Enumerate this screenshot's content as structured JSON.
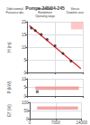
{
  "chart_data": [
    {
      "type": "line",
      "title": "Pompe 245/04-245",
      "annotations": [
        "Débit nominal",
        "Hmt nominal",
        "Vitesse",
        "Puissance abs.",
        "Rendement",
        "Diamètre roue",
        "Operating range"
      ],
      "ylabel": "H (m)",
      "xlim": [
        0,
        14000
      ],
      "ylim": [
        0,
        20
      ],
      "xticks": [
        0,
        7000,
        14000
      ],
      "yticks": [
        0,
        5,
        10,
        15,
        20
      ],
      "grid": true,
      "tick_labels": "y",
      "series": [
        {
          "type": "line",
          "x": [
            500,
            13500
          ],
          "values": [
            18.5,
            1.5
          ],
          "color": "#dd2222"
        },
        {
          "type": "scatter",
          "x": [
            1000,
            2000,
            3500,
            5000,
            7000,
            9000,
            11000
          ],
          "values": [
            17.5,
            16.5,
            15.0,
            13.0,
            10.5,
            7.5,
            4.5
          ],
          "color": "#222222",
          "marker": "circle"
        }
      ],
      "regions": [
        {
          "x": [
            11000,
            14000
          ],
          "y": [
            17.0,
            20.0
          ],
          "color": "#ffb0b0"
        }
      ]
    },
    {
      "type": "scatter",
      "ylabel": "P (kW)",
      "xlim": [
        0,
        14000
      ],
      "ylim": [
        0,
        10
      ],
      "xticks": [
        0,
        7000,
        14000
      ],
      "yticks": [
        0,
        5,
        10
      ],
      "grid": true,
      "tick_labels": "y",
      "series": [
        {
          "type": "scatter",
          "x": [
            2500
          ],
          "values": [
            2.5
          ],
          "color": "#555555",
          "marker": "square"
        }
      ],
      "regions": [
        {
          "x": [
            2000,
            13000
          ],
          "y": [
            3.5,
            5.5
          ],
          "color": "#f08080"
        }
      ]
    },
    {
      "type": "band",
      "ylabel": "Eff (%)",
      "xlim": [
        0,
        14000
      ],
      "ylim": [
        0,
        100
      ],
      "xticks": [
        0,
        7000,
        14000
      ],
      "yticks": [
        0,
        50,
        100
      ],
      "grid": true,
      "regions": [
        {
          "x": [
            2000,
            13000
          ],
          "y": [
            55,
            75
          ],
          "color": "#f08080"
        }
      ]
    }
  ]
}
